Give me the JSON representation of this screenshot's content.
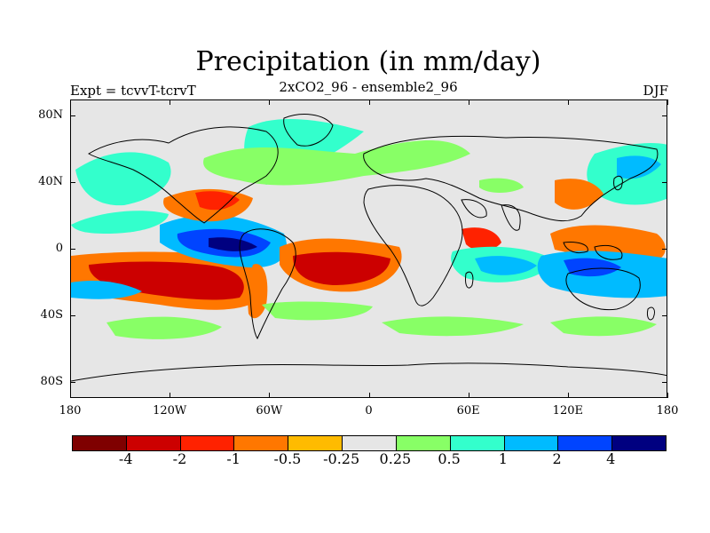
{
  "title": "Precipitation (in mm/day)",
  "subtitle": "2xCO2_96 - ensemble2_96",
  "left_label": "Expt = tcvvT-tcrvT",
  "right_label": "DJF",
  "lat_labels": [
    "80N",
    "40N",
    "0",
    "40S",
    "80S"
  ],
  "lon_labels": [
    "180",
    "120W",
    "60W",
    "0",
    "60E",
    "120E",
    "180"
  ],
  "colorbar": {
    "colors": [
      "#7f0000",
      "#cc0000",
      "#ff2200",
      "#ff7700",
      "#ffbb00",
      "#e6e6e6",
      "#88ff66",
      "#33ffcc",
      "#00bbff",
      "#0044ff",
      "#000080"
    ],
    "labels": [
      "-4",
      "-2",
      "-1",
      "-0.5",
      "-0.25",
      "0.25",
      "0.5",
      "1",
      "2",
      "4"
    ]
  },
  "map_colors": {
    "background": "#e6e6e6",
    "coast": "#000000"
  }
}
